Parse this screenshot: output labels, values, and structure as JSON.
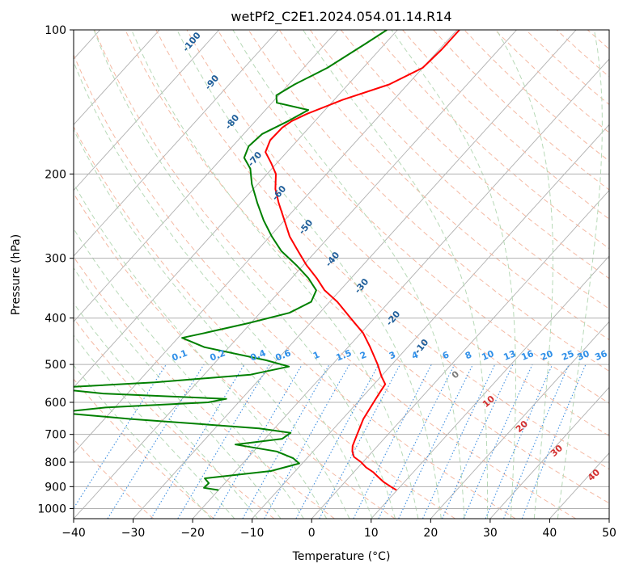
{
  "chart_data": {
    "type": "skew-t",
    "title": "wetPf2_C2E1.2024.054.01.14.R14",
    "xlabel": "Temperature (°C)",
    "ylabel": "Pressure (hPa)",
    "xlim": [
      -40,
      50
    ],
    "ylim_hpa": [
      1050,
      100
    ],
    "x_ticks": [
      -40,
      -30,
      -20,
      -10,
      0,
      10,
      20,
      30,
      40,
      50
    ],
    "y_ticks": [
      100,
      200,
      300,
      400,
      500,
      600,
      700,
      800,
      900,
      1000
    ],
    "grid": true,
    "series": [
      {
        "name": "temperature",
        "color": "#ff0000",
        "points": [
          [
            -49.6,
            100
          ],
          [
            -49.6,
            110
          ],
          [
            -50.0,
            120
          ],
          [
            -53.1,
            130
          ],
          [
            -58.6,
            140
          ],
          [
            -62.5,
            150
          ],
          [
            -63.9,
            155
          ],
          [
            -64.5,
            160
          ],
          [
            -64.6,
            170
          ],
          [
            -63.6,
            180
          ],
          [
            -60.9,
            190
          ],
          [
            -58.5,
            200
          ],
          [
            -56.3,
            215
          ],
          [
            -53.6,
            230
          ],
          [
            -50.0,
            250
          ],
          [
            -46.7,
            270
          ],
          [
            -43.0,
            290
          ],
          [
            -39.5,
            310
          ],
          [
            -35.8,
            330
          ],
          [
            -32.6,
            350
          ],
          [
            -28.7,
            370
          ],
          [
            -24.0,
            400
          ],
          [
            -19.6,
            430
          ],
          [
            -16.3,
            460
          ],
          [
            -12.4,
            500
          ],
          [
            -9.9,
            530
          ],
          [
            -8.1,
            550
          ],
          [
            -7.8,
            570
          ],
          [
            -7.3,
            600
          ],
          [
            -6.5,
            650
          ],
          [
            -5.2,
            700
          ],
          [
            -4.2,
            740
          ],
          [
            -3.4,
            760
          ],
          [
            -2.3,
            780
          ],
          [
            -0.3,
            800
          ],
          [
            1.3,
            820
          ],
          [
            3.3,
            840
          ],
          [
            4.9,
            860
          ],
          [
            6.5,
            880
          ],
          [
            8.4,
            900
          ],
          [
            9.9,
            915
          ]
        ]
      },
      {
        "name": "dewpoint",
        "color": "#008000",
        "points": [
          [
            -61.8,
            100
          ],
          [
            -63.3,
            107
          ],
          [
            -66.0,
            120
          ],
          [
            -69.0,
            130
          ],
          [
            -70.4,
            137
          ],
          [
            -69.2,
            142
          ],
          [
            -62.8,
            147
          ],
          [
            -64.5,
            155
          ],
          [
            -66.9,
            165
          ],
          [
            -67.3,
            175
          ],
          [
            -66.3,
            185
          ],
          [
            -63.6,
            195
          ],
          [
            -61.0,
            210
          ],
          [
            -57.2,
            230
          ],
          [
            -53.5,
            250
          ],
          [
            -49.7,
            270
          ],
          [
            -45.8,
            290
          ],
          [
            -41.2,
            310
          ],
          [
            -37.2,
            330
          ],
          [
            -34.0,
            350
          ],
          [
            -33.1,
            370
          ],
          [
            -35.1,
            390
          ],
          [
            -40.4,
            410
          ],
          [
            -46.3,
            430
          ],
          [
            -49.3,
            440
          ],
          [
            -44.2,
            460
          ],
          [
            -31.8,
            490
          ],
          [
            -27.0,
            505
          ],
          [
            -32.2,
            525
          ],
          [
            -47.1,
            545
          ],
          [
            -63.9,
            560
          ],
          [
            -54.1,
            575
          ],
          [
            -32.6,
            590
          ],
          [
            -35.1,
            600
          ],
          [
            -51.6,
            615
          ],
          [
            -58.8,
            630
          ],
          [
            -45.6,
            650
          ],
          [
            -22.6,
            680
          ],
          [
            -16.6,
            695
          ],
          [
            -17.1,
            715
          ],
          [
            -24.1,
            735
          ],
          [
            -16.1,
            760
          ],
          [
            -12.3,
            785
          ],
          [
            -10.5,
            805
          ],
          [
            -14.1,
            835
          ],
          [
            -24.1,
            865
          ],
          [
            -22.7,
            885
          ],
          [
            -22.8,
            905
          ],
          [
            -20.0,
            915
          ]
        ]
      }
    ],
    "dry_adiabat_labels": [
      "-100",
      "-90",
      "-80",
      "-70",
      "-60",
      "-50",
      "-40",
      "-30",
      "-20",
      "-10"
    ],
    "moist_adiabat_labels": [
      "0",
      "10",
      "20",
      "30",
      "40"
    ],
    "mixing_ratio_labels": [
      "0.1",
      "0.2",
      "0.4",
      "0.6",
      "1",
      "1.5",
      "2",
      "3",
      "4",
      "6",
      "8",
      "10",
      "13",
      "16",
      "20",
      "25",
      "30",
      "36"
    ]
  }
}
